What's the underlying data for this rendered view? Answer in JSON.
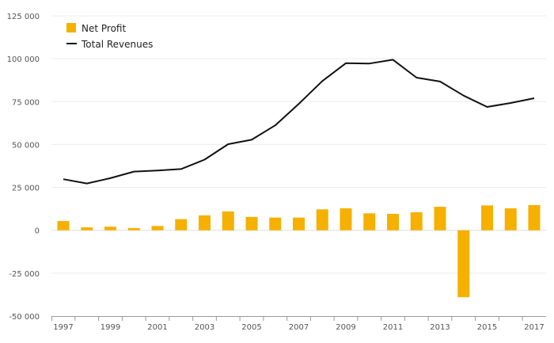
{
  "chart_data": {
    "type": "bar",
    "title": "",
    "xlabel": "",
    "ylabel": "",
    "categories": [
      "1997",
      "1998",
      "1999",
      "2000",
      "2001",
      "2002",
      "2003",
      "2004",
      "2005",
      "2006",
      "2007",
      "2008",
      "2009",
      "2010",
      "2011",
      "2012",
      "2013",
      "2014",
      "2015",
      "2016",
      "2017"
    ],
    "x_tick_labels": [
      "1997",
      "1999",
      "2001",
      "2003",
      "2005",
      "2007",
      "2009",
      "2011",
      "2013",
      "2015",
      "2017"
    ],
    "y_ticks": [
      -50000,
      -25000,
      0,
      25000,
      50000,
      75000,
      100000,
      125000
    ],
    "y_tick_labels": [
      "-50 000",
      "-25 000",
      "0",
      "25 000",
      "50 000",
      "75 000",
      "100 000",
      "125 000"
    ],
    "ylim": [
      -50000,
      125000
    ],
    "grid": true,
    "legend_position": "top-left",
    "series": [
      {
        "name": "Net Profit",
        "kind": "bar",
        "color": "#f5b000",
        "values": [
          5400,
          1700,
          2100,
          1300,
          2500,
          6500,
          8700,
          11000,
          7800,
          7400,
          7400,
          12200,
          12800,
          9900,
          9600,
          10500,
          13700,
          -39000,
          14500,
          12800,
          14700
        ]
      },
      {
        "name": "Total Revenues",
        "kind": "line",
        "color": "#111111",
        "values": [
          29800,
          27300,
          30400,
          34200,
          34800,
          35700,
          41200,
          50200,
          52800,
          61200,
          73700,
          87000,
          97400,
          97200,
          99400,
          89000,
          86700,
          78500,
          71900,
          74200,
          77000
        ]
      }
    ]
  }
}
